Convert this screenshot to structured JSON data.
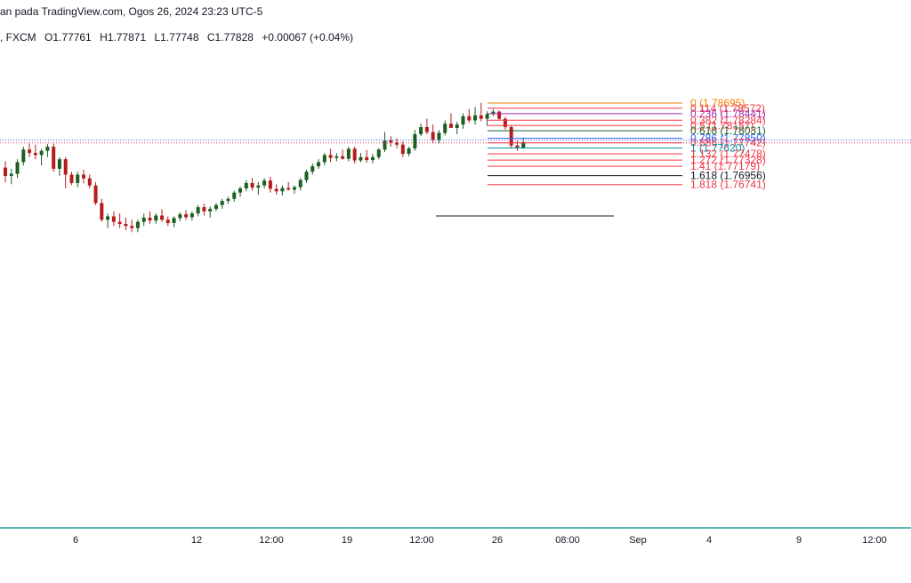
{
  "header": {
    "attribution": "an pada TradingView.com, Ogos 26, 2024 23:23 UTC-5"
  },
  "ohlc": {
    "symbol": ", FXCM",
    "open": "O1.77761",
    "high": "H1.77871",
    "low": "L1.77748",
    "close": "C1.77828",
    "change": "+0.00067 (+0.04%)"
  },
  "colors": {
    "up": "#1b5e20",
    "down": "#b71c1c",
    "axis_line": "#26a69a",
    "price_line": "#2962ff",
    "dotted_red": "#f23645"
  },
  "chart_data": {
    "type": "candlestick",
    "x_ticks": [
      "6",
      "12",
      "12:00",
      "19",
      "12:00",
      "26",
      "08:00",
      "Sep",
      "4",
      "9",
      "12:00"
    ],
    "current_price_line": 1.7785,
    "prev_close_line": 1.77742,
    "fibonacci": [
      {
        "level": "0",
        "price": 1.78695,
        "label": "0 (1.78695)",
        "color": "#f57c00"
      },
      {
        "level": "0.114",
        "price": 1.78572,
        "label": "0.114 (1.78572)",
        "color": "#f23645"
      },
      {
        "level": "0.236",
        "price": 1.78441,
        "label": "0.236 (1.78441)",
        "color": "#9c27b0"
      },
      {
        "level": "0.382",
        "price": 1.78284,
        "label": "0.382 (1.78284)",
        "color": "#f23645"
      },
      {
        "level": "0.5",
        "price": 1.78157,
        "label": "0.5 (1.78157)",
        "color": "#f23645"
      },
      {
        "level": "0.618",
        "price": 1.78031,
        "label": "0.618 (1.78031)",
        "color": "#1b5e20"
      },
      {
        "level": "0.786",
        "price": 1.7785,
        "label": "0.786 (1.77850)",
        "color": "#2962ff"
      },
      {
        "level": "0.886",
        "price": 1.77742,
        "label": "0.886 (1.77742)",
        "color": "#f23645"
      },
      {
        "level": "1",
        "price": 1.7762,
        "label": "1 (1.77620)",
        "color": "#0097a7"
      },
      {
        "level": "1.132",
        "price": 1.77478,
        "label": "1.132 (1.77478)",
        "color": "#f23645"
      },
      {
        "level": "1.272",
        "price": 1.77328,
        "label": "1.272 (1.77328)",
        "color": "#f23645"
      },
      {
        "level": "1.41",
        "price": 1.77179,
        "label": "1.41 (1.77179)",
        "color": "#f23645"
      },
      {
        "level": "1.618",
        "price": 1.76956,
        "label": "1.618 (1.76956)",
        "color": "#131722"
      },
      {
        "level": "1.818",
        "price": 1.76741,
        "label": "1.818 (1.76741)",
        "color": "#f23645"
      }
    ],
    "candles": [
      {
        "o": 1.7715,
        "h": 1.773,
        "l": 1.768,
        "c": 1.7695
      },
      {
        "o": 1.7695,
        "h": 1.7712,
        "l": 1.7675,
        "c": 1.77
      },
      {
        "o": 1.77,
        "h": 1.7735,
        "l": 1.769,
        "c": 1.7728
      },
      {
        "o": 1.7728,
        "h": 1.7765,
        "l": 1.772,
        "c": 1.7758
      },
      {
        "o": 1.7758,
        "h": 1.7773,
        "l": 1.774,
        "c": 1.775
      },
      {
        "o": 1.775,
        "h": 1.777,
        "l": 1.7735,
        "c": 1.7745
      },
      {
        "o": 1.7745,
        "h": 1.776,
        "l": 1.772,
        "c": 1.7755
      },
      {
        "o": 1.7755,
        "h": 1.7772,
        "l": 1.774,
        "c": 1.7765
      },
      {
        "o": 1.7765,
        "h": 1.7773,
        "l": 1.7705,
        "c": 1.7712
      },
      {
        "o": 1.7712,
        "h": 1.774,
        "l": 1.7695,
        "c": 1.7735
      },
      {
        "o": 1.7735,
        "h": 1.774,
        "l": 1.7665,
        "c": 1.7698
      },
      {
        "o": 1.7698,
        "h": 1.7705,
        "l": 1.7673,
        "c": 1.7678
      },
      {
        "o": 1.7678,
        "h": 1.7705,
        "l": 1.7668,
        "c": 1.7698
      },
      {
        "o": 1.7698,
        "h": 1.771,
        "l": 1.7677,
        "c": 1.7689
      },
      {
        "o": 1.7689,
        "h": 1.7698,
        "l": 1.7665,
        "c": 1.7672
      },
      {
        "o": 1.7672,
        "h": 1.768,
        "l": 1.7625,
        "c": 1.763
      },
      {
        "o": 1.763,
        "h": 1.764,
        "l": 1.7585,
        "c": 1.759
      },
      {
        "o": 1.759,
        "h": 1.7605,
        "l": 1.757,
        "c": 1.7598
      },
      {
        "o": 1.7598,
        "h": 1.761,
        "l": 1.7575,
        "c": 1.7585
      },
      {
        "o": 1.7585,
        "h": 1.7605,
        "l": 1.757,
        "c": 1.758
      },
      {
        "o": 1.758,
        "h": 1.7595,
        "l": 1.7565,
        "c": 1.7575
      },
      {
        "o": 1.7575,
        "h": 1.759,
        "l": 1.756,
        "c": 1.757
      },
      {
        "o": 1.757,
        "h": 1.759,
        "l": 1.756,
        "c": 1.7585
      },
      {
        "o": 1.7585,
        "h": 1.7605,
        "l": 1.7575,
        "c": 1.7595
      },
      {
        "o": 1.7595,
        "h": 1.761,
        "l": 1.758,
        "c": 1.7588
      },
      {
        "o": 1.7588,
        "h": 1.7605,
        "l": 1.758,
        "c": 1.76
      },
      {
        "o": 1.76,
        "h": 1.7615,
        "l": 1.7585,
        "c": 1.759
      },
      {
        "o": 1.759,
        "h": 1.7598,
        "l": 1.7575,
        "c": 1.7582
      },
      {
        "o": 1.7582,
        "h": 1.7598,
        "l": 1.7572,
        "c": 1.7594
      },
      {
        "o": 1.7594,
        "h": 1.7608,
        "l": 1.7586,
        "c": 1.7603
      },
      {
        "o": 1.7603,
        "h": 1.7613,
        "l": 1.759,
        "c": 1.7596
      },
      {
        "o": 1.7596,
        "h": 1.761,
        "l": 1.7588,
        "c": 1.7605
      },
      {
        "o": 1.7605,
        "h": 1.7625,
        "l": 1.7598,
        "c": 1.762
      },
      {
        "o": 1.762,
        "h": 1.7628,
        "l": 1.76,
        "c": 1.761
      },
      {
        "o": 1.761,
        "h": 1.7622,
        "l": 1.7595,
        "c": 1.7616
      },
      {
        "o": 1.7616,
        "h": 1.763,
        "l": 1.761,
        "c": 1.7625
      },
      {
        "o": 1.7625,
        "h": 1.764,
        "l": 1.7616,
        "c": 1.7635
      },
      {
        "o": 1.7635,
        "h": 1.7645,
        "l": 1.7628,
        "c": 1.764
      },
      {
        "o": 1.764,
        "h": 1.766,
        "l": 1.7633,
        "c": 1.7655
      },
      {
        "o": 1.7655,
        "h": 1.767,
        "l": 1.7645,
        "c": 1.7665
      },
      {
        "o": 1.7665,
        "h": 1.7685,
        "l": 1.7658,
        "c": 1.7678
      },
      {
        "o": 1.7678,
        "h": 1.769,
        "l": 1.766,
        "c": 1.7667
      },
      {
        "o": 1.7667,
        "h": 1.768,
        "l": 1.765,
        "c": 1.7672
      },
      {
        "o": 1.7672,
        "h": 1.769,
        "l": 1.7665,
        "c": 1.7684
      },
      {
        "o": 1.7684,
        "h": 1.7693,
        "l": 1.7655,
        "c": 1.7664
      },
      {
        "o": 1.7664,
        "h": 1.7675,
        "l": 1.765,
        "c": 1.7658
      },
      {
        "o": 1.7658,
        "h": 1.7672,
        "l": 1.7648,
        "c": 1.7666
      },
      {
        "o": 1.7666,
        "h": 1.768,
        "l": 1.766,
        "c": 1.7662
      },
      {
        "o": 1.7662,
        "h": 1.7672,
        "l": 1.7652,
        "c": 1.7668
      },
      {
        "o": 1.7668,
        "h": 1.769,
        "l": 1.766,
        "c": 1.7685
      },
      {
        "o": 1.7685,
        "h": 1.771,
        "l": 1.7678,
        "c": 1.7705
      },
      {
        "o": 1.7705,
        "h": 1.7725,
        "l": 1.7698,
        "c": 1.7718
      },
      {
        "o": 1.7718,
        "h": 1.7735,
        "l": 1.7712,
        "c": 1.7728
      },
      {
        "o": 1.7728,
        "h": 1.775,
        "l": 1.772,
        "c": 1.7745
      },
      {
        "o": 1.7745,
        "h": 1.776,
        "l": 1.7728,
        "c": 1.7738
      },
      {
        "o": 1.7738,
        "h": 1.775,
        "l": 1.773,
        "c": 1.7742
      },
      {
        "o": 1.7742,
        "h": 1.7758,
        "l": 1.7734,
        "c": 1.7736
      },
      {
        "o": 1.7736,
        "h": 1.7765,
        "l": 1.773,
        "c": 1.776
      },
      {
        "o": 1.776,
        "h": 1.7765,
        "l": 1.7725,
        "c": 1.7732
      },
      {
        "o": 1.7732,
        "h": 1.775,
        "l": 1.7728,
        "c": 1.774
      },
      {
        "o": 1.774,
        "h": 1.7757,
        "l": 1.7727,
        "c": 1.7733
      },
      {
        "o": 1.7733,
        "h": 1.7748,
        "l": 1.7725,
        "c": 1.774
      },
      {
        "o": 1.774,
        "h": 1.7762,
        "l": 1.7735,
        "c": 1.7758
      },
      {
        "o": 1.7758,
        "h": 1.78,
        "l": 1.7752,
        "c": 1.778
      },
      {
        "o": 1.778,
        "h": 1.779,
        "l": 1.7765,
        "c": 1.7775
      },
      {
        "o": 1.7775,
        "h": 1.7785,
        "l": 1.7762,
        "c": 1.777
      },
      {
        "o": 1.777,
        "h": 1.7778,
        "l": 1.774,
        "c": 1.7748
      },
      {
        "o": 1.7748,
        "h": 1.7765,
        "l": 1.7742,
        "c": 1.7761
      },
      {
        "o": 1.7761,
        "h": 1.7805,
        "l": 1.7755,
        "c": 1.7795
      },
      {
        "o": 1.7795,
        "h": 1.782,
        "l": 1.779,
        "c": 1.7812
      },
      {
        "o": 1.7812,
        "h": 1.7832,
        "l": 1.7795,
        "c": 1.78
      },
      {
        "o": 1.78,
        "h": 1.7818,
        "l": 1.7773,
        "c": 1.7781
      },
      {
        "o": 1.7781,
        "h": 1.7805,
        "l": 1.7773,
        "c": 1.7798
      },
      {
        "o": 1.7798,
        "h": 1.7828,
        "l": 1.7792,
        "c": 1.782
      },
      {
        "o": 1.782,
        "h": 1.7845,
        "l": 1.7812,
        "c": 1.781
      },
      {
        "o": 1.781,
        "h": 1.7825,
        "l": 1.7795,
        "c": 1.7818
      },
      {
        "o": 1.7818,
        "h": 1.7845,
        "l": 1.7808,
        "c": 1.7838
      },
      {
        "o": 1.7838,
        "h": 1.7855,
        "l": 1.7822,
        "c": 1.7828
      },
      {
        "o": 1.7828,
        "h": 1.786,
        "l": 1.7818,
        "c": 1.784
      },
      {
        "o": 1.784,
        "h": 1.787,
        "l": 1.7826,
        "c": 1.7832
      },
      {
        "o": 1.7832,
        "h": 1.785,
        "l": 1.7815,
        "c": 1.7843
      },
      {
        "o": 1.7843,
        "h": 1.7855,
        "l": 1.7838,
        "c": 1.7849
      },
      {
        "o": 1.7849,
        "h": 1.7852,
        "l": 1.7828,
        "c": 1.7832
      },
      {
        "o": 1.7832,
        "h": 1.7836,
        "l": 1.7806,
        "c": 1.7812
      },
      {
        "o": 1.7812,
        "h": 1.7815,
        "l": 1.776,
        "c": 1.7768
      },
      {
        "o": 1.7768,
        "h": 1.778,
        "l": 1.7755,
        "c": 1.7762
      },
      {
        "o": 1.7762,
        "h": 1.7787,
        "l": 1.776,
        "c": 1.7776
      }
    ]
  }
}
